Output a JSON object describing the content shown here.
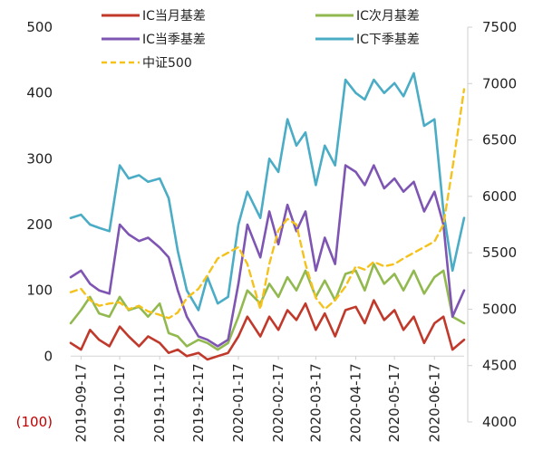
{
  "chart_data": {
    "type": "line",
    "title": "",
    "xlabel": "",
    "ylabel": "",
    "ylim": [
      -100,
      500
    ],
    "y2lim": [
      4000,
      7500
    ],
    "yticks": [
      "500",
      "400",
      "300",
      "200",
      "100",
      "0",
      "(100)"
    ],
    "y2ticks": [
      "7500",
      "7000",
      "6500",
      "6000",
      "5500",
      "5000",
      "4500",
      "4000"
    ],
    "xticks": [
      "2019-09-17",
      "2019-10-17",
      "2019-11-17",
      "2019-12-17",
      "2020-01-17",
      "2020-02-17",
      "2020-03-17",
      "2020-04-17",
      "2020-05-17",
      "2020-06-17"
    ],
    "x_range": [
      "2019-09-09",
      "2020-07-10"
    ],
    "legend_position": "top",
    "colors": {
      "current_month": "#c0392b",
      "next_month": "#92b94f",
      "current_quarter": "#7e55b3",
      "next_quarter": "#4bacc6",
      "csi500": "#f5c21b"
    },
    "series": [
      {
        "name": "IC当月基差",
        "key": "current_month",
        "axis": "left",
        "style": "solid",
        "points": [
          [
            "2019-09-09",
            20
          ],
          [
            "2019-09-17",
            10
          ],
          [
            "2019-09-24",
            40
          ],
          [
            "2019-10-01",
            25
          ],
          [
            "2019-10-09",
            15
          ],
          [
            "2019-10-17",
            45
          ],
          [
            "2019-10-24",
            30
          ],
          [
            "2019-11-01",
            15
          ],
          [
            "2019-11-08",
            30
          ],
          [
            "2019-11-17",
            20
          ],
          [
            "2019-11-24",
            5
          ],
          [
            "2019-12-01",
            10
          ],
          [
            "2019-12-08",
            0
          ],
          [
            "2019-12-17",
            5
          ],
          [
            "2019-12-24",
            -5
          ],
          [
            "2020-01-01",
            0
          ],
          [
            "2020-01-09",
            5
          ],
          [
            "2020-01-17",
            30
          ],
          [
            "2020-01-24",
            60
          ],
          [
            "2020-02-03",
            30
          ],
          [
            "2020-02-10",
            60
          ],
          [
            "2020-02-17",
            40
          ],
          [
            "2020-02-24",
            70
          ],
          [
            "2020-03-02",
            55
          ],
          [
            "2020-03-09",
            80
          ],
          [
            "2020-03-17",
            40
          ],
          [
            "2020-03-24",
            65
          ],
          [
            "2020-04-01",
            30
          ],
          [
            "2020-04-09",
            70
          ],
          [
            "2020-04-17",
            75
          ],
          [
            "2020-04-24",
            50
          ],
          [
            "2020-05-01",
            85
          ],
          [
            "2020-05-09",
            55
          ],
          [
            "2020-05-17",
            70
          ],
          [
            "2020-05-24",
            40
          ],
          [
            "2020-06-01",
            60
          ],
          [
            "2020-06-09",
            20
          ],
          [
            "2020-06-17",
            50
          ],
          [
            "2020-06-24",
            60
          ],
          [
            "2020-07-01",
            10
          ],
          [
            "2020-07-10",
            25
          ]
        ]
      },
      {
        "name": "IC次月基差",
        "key": "next_month",
        "axis": "left",
        "style": "solid",
        "points": [
          [
            "2019-09-09",
            50
          ],
          [
            "2019-09-17",
            70
          ],
          [
            "2019-09-24",
            90
          ],
          [
            "2019-10-01",
            65
          ],
          [
            "2019-10-09",
            60
          ],
          [
            "2019-10-17",
            90
          ],
          [
            "2019-10-24",
            70
          ],
          [
            "2019-11-01",
            75
          ],
          [
            "2019-11-08",
            60
          ],
          [
            "2019-11-17",
            80
          ],
          [
            "2019-11-24",
            35
          ],
          [
            "2019-12-01",
            30
          ],
          [
            "2019-12-08",
            15
          ],
          [
            "2019-12-17",
            25
          ],
          [
            "2019-12-24",
            20
          ],
          [
            "2020-01-01",
            10
          ],
          [
            "2020-01-09",
            20
          ],
          [
            "2020-01-17",
            60
          ],
          [
            "2020-01-24",
            100
          ],
          [
            "2020-02-03",
            80
          ],
          [
            "2020-02-10",
            110
          ],
          [
            "2020-02-17",
            90
          ],
          [
            "2020-02-24",
            120
          ],
          [
            "2020-03-02",
            100
          ],
          [
            "2020-03-09",
            130
          ],
          [
            "2020-03-17",
            90
          ],
          [
            "2020-03-24",
            115
          ],
          [
            "2020-04-01",
            85
          ],
          [
            "2020-04-09",
            125
          ],
          [
            "2020-04-17",
            130
          ],
          [
            "2020-04-24",
            100
          ],
          [
            "2020-05-01",
            140
          ],
          [
            "2020-05-09",
            110
          ],
          [
            "2020-05-17",
            125
          ],
          [
            "2020-05-24",
            100
          ],
          [
            "2020-06-01",
            130
          ],
          [
            "2020-06-09",
            95
          ],
          [
            "2020-06-17",
            120
          ],
          [
            "2020-06-24",
            130
          ],
          [
            "2020-07-01",
            60
          ],
          [
            "2020-07-10",
            50
          ]
        ]
      },
      {
        "name": "IC当季基差",
        "key": "current_quarter",
        "axis": "left",
        "style": "solid",
        "points": [
          [
            "2019-09-09",
            120
          ],
          [
            "2019-09-17",
            130
          ],
          [
            "2019-09-24",
            110
          ],
          [
            "2019-10-01",
            100
          ],
          [
            "2019-10-09",
            95
          ],
          [
            "2019-10-17",
            200
          ],
          [
            "2019-10-24",
            185
          ],
          [
            "2019-11-01",
            175
          ],
          [
            "2019-11-08",
            180
          ],
          [
            "2019-11-17",
            165
          ],
          [
            "2019-11-24",
            150
          ],
          [
            "2019-12-01",
            100
          ],
          [
            "2019-12-08",
            60
          ],
          [
            "2019-12-17",
            30
          ],
          [
            "2019-12-24",
            25
          ],
          [
            "2020-01-01",
            15
          ],
          [
            "2020-01-09",
            25
          ],
          [
            "2020-01-17",
            110
          ],
          [
            "2020-01-24",
            200
          ],
          [
            "2020-02-03",
            150
          ],
          [
            "2020-02-10",
            220
          ],
          [
            "2020-02-17",
            170
          ],
          [
            "2020-02-24",
            230
          ],
          [
            "2020-03-02",
            190
          ],
          [
            "2020-03-09",
            220
          ],
          [
            "2020-03-17",
            130
          ],
          [
            "2020-03-24",
            180
          ],
          [
            "2020-04-01",
            140
          ],
          [
            "2020-04-09",
            290
          ],
          [
            "2020-04-17",
            280
          ],
          [
            "2020-04-24",
            260
          ],
          [
            "2020-05-01",
            290
          ],
          [
            "2020-05-09",
            255
          ],
          [
            "2020-05-17",
            270
          ],
          [
            "2020-05-24",
            250
          ],
          [
            "2020-06-01",
            265
          ],
          [
            "2020-06-09",
            220
          ],
          [
            "2020-06-17",
            250
          ],
          [
            "2020-06-24",
            200
          ],
          [
            "2020-07-01",
            60
          ],
          [
            "2020-07-10",
            100
          ]
        ]
      },
      {
        "name": "IC下季基差",
        "key": "next_quarter",
        "axis": "left",
        "style": "solid",
        "points": [
          [
            "2019-09-09",
            210
          ],
          [
            "2019-09-17",
            215
          ],
          [
            "2019-09-24",
            200
          ],
          [
            "2019-10-01",
            195
          ],
          [
            "2019-10-09",
            190
          ],
          [
            "2019-10-17",
            290
          ],
          [
            "2019-10-24",
            270
          ],
          [
            "2019-11-01",
            275
          ],
          [
            "2019-11-08",
            265
          ],
          [
            "2019-11-17",
            270
          ],
          [
            "2019-11-24",
            240
          ],
          [
            "2019-12-01",
            160
          ],
          [
            "2019-12-08",
            100
          ],
          [
            "2019-12-17",
            70
          ],
          [
            "2019-12-24",
            120
          ],
          [
            "2020-01-01",
            80
          ],
          [
            "2020-01-09",
            90
          ],
          [
            "2020-01-17",
            200
          ],
          [
            "2020-01-24",
            250
          ],
          [
            "2020-02-03",
            210
          ],
          [
            "2020-02-10",
            300
          ],
          [
            "2020-02-17",
            280
          ],
          [
            "2020-02-24",
            360
          ],
          [
            "2020-03-02",
            320
          ],
          [
            "2020-03-09",
            340
          ],
          [
            "2020-03-17",
            260
          ],
          [
            "2020-03-24",
            320
          ],
          [
            "2020-04-01",
            290
          ],
          [
            "2020-04-09",
            420
          ],
          [
            "2020-04-17",
            400
          ],
          [
            "2020-04-24",
            390
          ],
          [
            "2020-05-01",
            420
          ],
          [
            "2020-05-09",
            400
          ],
          [
            "2020-05-17",
            415
          ],
          [
            "2020-05-24",
            395
          ],
          [
            "2020-06-01",
            430
          ],
          [
            "2020-06-09",
            350
          ],
          [
            "2020-06-17",
            360
          ],
          [
            "2020-06-24",
            220
          ],
          [
            "2020-07-01",
            130
          ],
          [
            "2020-07-10",
            210
          ]
        ]
      },
      {
        "name": "中证500",
        "key": "csi500",
        "axis": "right",
        "style": "dashed",
        "points": [
          [
            "2019-09-09",
            5150
          ],
          [
            "2019-09-17",
            5180
          ],
          [
            "2019-09-24",
            5080
          ],
          [
            "2019-10-01",
            5030
          ],
          [
            "2019-10-09",
            5050
          ],
          [
            "2019-10-17",
            5060
          ],
          [
            "2019-10-24",
            5000
          ],
          [
            "2019-11-01",
            5030
          ],
          [
            "2019-11-08",
            4980
          ],
          [
            "2019-11-17",
            4950
          ],
          [
            "2019-11-24",
            4920
          ],
          [
            "2019-12-01",
            4970
          ],
          [
            "2019-12-08",
            5100
          ],
          [
            "2019-12-17",
            5180
          ],
          [
            "2019-12-24",
            5300
          ],
          [
            "2020-01-01",
            5450
          ],
          [
            "2020-01-09",
            5500
          ],
          [
            "2020-01-17",
            5550
          ],
          [
            "2020-01-24",
            5400
          ],
          [
            "2020-02-03",
            5000
          ],
          [
            "2020-02-10",
            5400
          ],
          [
            "2020-02-17",
            5700
          ],
          [
            "2020-02-24",
            5800
          ],
          [
            "2020-03-02",
            5750
          ],
          [
            "2020-03-09",
            5400
          ],
          [
            "2020-03-17",
            5100
          ],
          [
            "2020-03-24",
            5000
          ],
          [
            "2020-04-01",
            5080
          ],
          [
            "2020-04-09",
            5200
          ],
          [
            "2020-04-17",
            5380
          ],
          [
            "2020-04-24",
            5350
          ],
          [
            "2020-05-01",
            5420
          ],
          [
            "2020-05-09",
            5380
          ],
          [
            "2020-05-17",
            5400
          ],
          [
            "2020-05-24",
            5450
          ],
          [
            "2020-06-01",
            5500
          ],
          [
            "2020-06-09",
            5550
          ],
          [
            "2020-06-17",
            5600
          ],
          [
            "2020-06-24",
            5750
          ],
          [
            "2020-07-01",
            6250
          ],
          [
            "2020-07-10",
            6950
          ]
        ]
      }
    ]
  }
}
